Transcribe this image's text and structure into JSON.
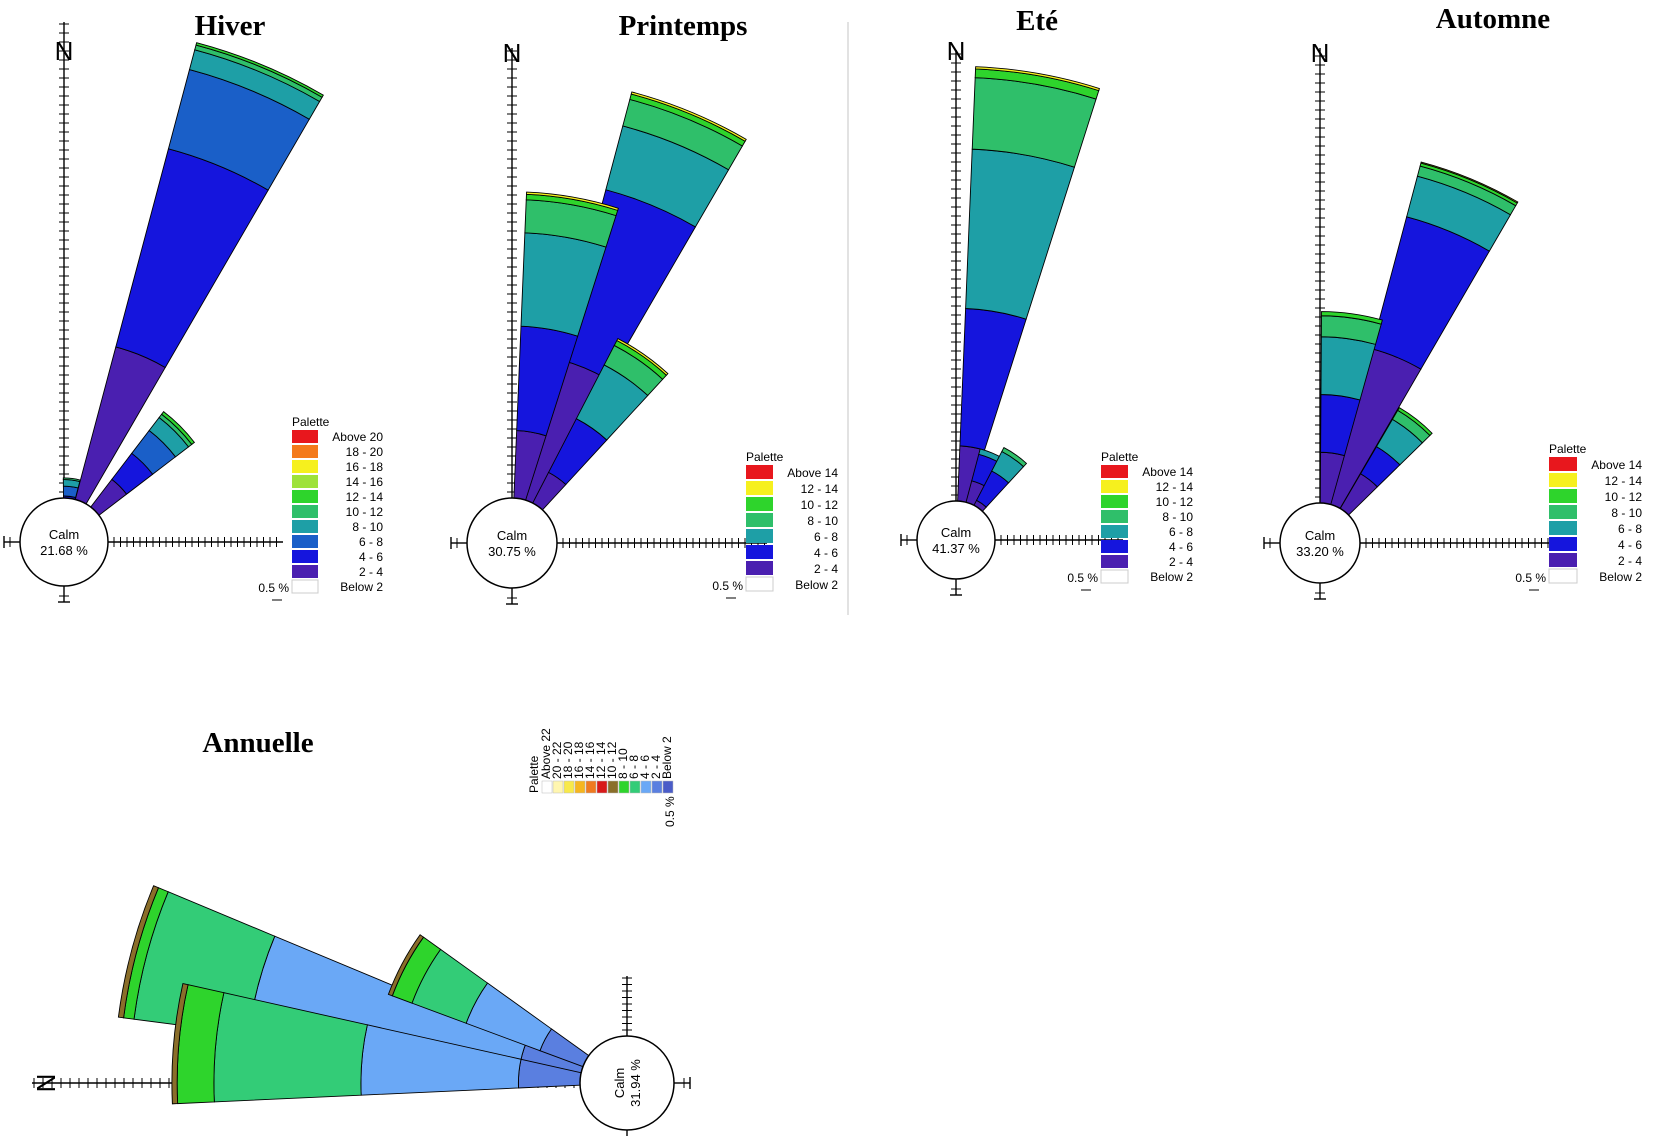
{
  "figure": {
    "calm_label": "Calm",
    "north_label": "N",
    "legend_title": "Palette",
    "scale_label": "0.5 %"
  },
  "chart_data": [
    {
      "type": "wind-rose",
      "title": "Hiver",
      "calm": "21.68 %",
      "legend": [
        "Above 20",
        "18 - 20",
        "16 - 18",
        "14 - 16",
        "12 - 14",
        "10 - 12",
        "8 - 10",
        "6 -  8",
        "4 -  6",
        "2 -  4",
        "Below  2"
      ],
      "legend_colors": [
        "#e8171d",
        "#f47a1c",
        "#f6f01e",
        "#9ee23a",
        "#2ed42c",
        "#2fbf6a",
        "#1e9fa6",
        "#1a5fc8",
        "#1515dd",
        "#4a1fb0",
        "#ffffff"
      ],
      "petals": [
        {
          "direction": 22.5,
          "bins": [
            {
              "range": "2 - 4",
              "value": 2.3
            },
            {
              "range": "4 - 6",
              "value": 2.5
            },
            {
              "range": "6 - 8",
              "value": 1.0
            },
            {
              "range": "8 - 10",
              "value": 0.25
            },
            {
              "range": "10 - 12",
              "value": 0.06
            },
            {
              "range": "12 - 14",
              "value": 0.03
            }
          ]
        },
        {
          "direction": 45,
          "bins": [
            {
              "range": "2 - 4",
              "value": 0.8
            },
            {
              "range": "4 - 6",
              "value": 0.4
            },
            {
              "range": "6 - 8",
              "value": 0.35
            },
            {
              "range": "8 - 10",
              "value": 0.2
            },
            {
              "range": "10 - 12",
              "value": 0.05
            },
            {
              "range": "12 - 14",
              "value": 0.04
            }
          ]
        },
        {
          "direction": 7,
          "bins": [
            {
              "range": "2 - 4",
              "value": 0.25
            },
            {
              "range": "4 - 6",
              "value": 0.15
            },
            {
              "range": "6 - 8",
              "value": 0.12
            },
            {
              "range": "8 - 10",
              "value": 0.08
            },
            {
              "range": "10 - 12",
              "value": 0.02
            }
          ]
        }
      ]
    },
    {
      "type": "wind-rose",
      "title": "Printemps",
      "calm": "30.75 %",
      "legend": [
        "Above 14",
        "12 - 14",
        "10 - 12",
        "8 - 10",
        "6 -  8",
        "4 -  6",
        "2 -  4",
        "Below  2"
      ],
      "legend_colors": [
        "#e8171d",
        "#f6f01e",
        "#2ed42c",
        "#2fbf6a",
        "#1e9fa6",
        "#1515dd",
        "#4a1fb0",
        "#ffffff"
      ],
      "petals": [
        {
          "direction": 22.5,
          "bins": [
            {
              "range": "2 - 4",
              "value": 1.6
            },
            {
              "range": "4 - 6",
              "value": 1.6
            },
            {
              "range": "6 - 8",
              "value": 0.6
            },
            {
              "range": "8 - 10",
              "value": 0.25
            },
            {
              "range": "10 - 12",
              "value": 0.05
            },
            {
              "range": "12 - 14",
              "value": 0.02
            }
          ]
        },
        {
          "direction": 10,
          "bins": [
            {
              "range": "2 - 4",
              "value": 0.9
            },
            {
              "range": "4 - 6",
              "value": 0.95
            },
            {
              "range": "6 - 8",
              "value": 0.85
            },
            {
              "range": "8 - 10",
              "value": 0.3
            },
            {
              "range": "10 - 12",
              "value": 0.05
            },
            {
              "range": "12 - 14",
              "value": 0.02
            }
          ]
        },
        {
          "direction": 35,
          "bins": [
            {
              "range": "2 - 4",
              "value": 0.6
            },
            {
              "range": "4 - 6",
              "value": 0.55
            },
            {
              "range": "6 - 8",
              "value": 0.55
            },
            {
              "range": "8 - 10",
              "value": 0.2
            },
            {
              "range": "10 - 12",
              "value": 0.05
            },
            {
              "range": "12 - 14",
              "value": 0.02
            }
          ]
        },
        {
          "direction": 0,
          "bins": [
            {
              "range": "2 - 4",
              "value": 0.15
            },
            {
              "range": "4 - 6",
              "value": 0.1
            }
          ]
        }
      ]
    },
    {
      "type": "wind-rose",
      "title": "Eté",
      "calm": "41.37 %",
      "legend": [
        "Above 14",
        "12 - 14",
        "10 - 12",
        "8 - 10",
        "6 -  8",
        "4 -  6",
        "2 -  4",
        "Below  2"
      ],
      "legend_colors": [
        "#e8171d",
        "#f6f01e",
        "#2ed42c",
        "#2fbf6a",
        "#1e9fa6",
        "#1515dd",
        "#4a1fb0",
        "#ffffff"
      ],
      "petals": [
        {
          "direction": 10,
          "bins": [
            {
              "range": "2 - 4",
              "value": 0.75
            },
            {
              "range": "4 - 6",
              "value": 1.25
            },
            {
              "range": "6 - 8",
              "value": 1.45
            },
            {
              "range": "8 - 10",
              "value": 0.65
            },
            {
              "range": "10 - 12",
              "value": 0.08
            },
            {
              "range": "12 - 14",
              "value": 0.02
            }
          ]
        },
        {
          "direction": 22.5,
          "bins": [
            {
              "range": "2 - 4",
              "value": 0.45
            },
            {
              "range": "4 - 6",
              "value": 0.25
            },
            {
              "range": "6 - 8",
              "value": 0.05
            }
          ]
        },
        {
          "direction": 35,
          "bins": [
            {
              "range": "2 - 4",
              "value": 0.3
            },
            {
              "range": "4 - 6",
              "value": 0.3
            },
            {
              "range": "6 - 8",
              "value": 0.2
            },
            {
              "range": "8 - 10",
              "value": 0.04
            }
          ]
        },
        {
          "direction": 0,
          "bins": [
            {
              "range": "2 - 4",
              "value": 0.15
            },
            {
              "range": "4 - 6",
              "value": 0.1
            }
          ]
        }
      ]
    },
    {
      "type": "wind-rose",
      "title": "Automne",
      "calm": "33.20 %",
      "legend": [
        "Above 14",
        "12 - 14",
        "10 - 12",
        "8 - 10",
        "6 -  8",
        "4 -  6",
        "2 -  4",
        "Below  2"
      ],
      "legend_colors": [
        "#e8171d",
        "#f6f01e",
        "#2ed42c",
        "#2fbf6a",
        "#1e9fa6",
        "#1515dd",
        "#4a1fb0",
        "#ffffff"
      ],
      "petals": [
        {
          "direction": 22.5,
          "bins": [
            {
              "range": "2 - 4",
              "value": 1.8
            },
            {
              "range": "4 - 6",
              "value": 1.3
            },
            {
              "range": "6 - 8",
              "value": 0.4
            },
            {
              "range": "8 - 10",
              "value": 0.1
            },
            {
              "range": "10 - 12",
              "value": 0.03
            },
            {
              "range": "12 - 14",
              "value": 0.01
            }
          ]
        },
        {
          "direction": 8,
          "bins": [
            {
              "range": "2 - 4",
              "value": 0.75
            },
            {
              "range": "4 - 6",
              "value": 0.55
            },
            {
              "range": "6 - 8",
              "value": 0.55
            },
            {
              "range": "8 - 10",
              "value": 0.2
            },
            {
              "range": "10 - 12",
              "value": 0.04
            }
          ]
        },
        {
          "direction": 38,
          "bins": [
            {
              "range": "2 - 4",
              "value": 0.65
            },
            {
              "range": "4 - 6",
              "value": 0.3
            },
            {
              "range": "6 - 8",
              "value": 0.3
            },
            {
              "range": "8 - 10",
              "value": 0.1
            },
            {
              "range": "10 - 12",
              "value": 0.03
            }
          ]
        },
        {
          "direction": 0,
          "bins": [
            {
              "range": "2 - 4",
              "value": 0.15
            },
            {
              "range": "4 - 6",
              "value": 0.1
            }
          ]
        }
      ]
    },
    {
      "type": "wind-rose",
      "title": "Annuelle",
      "calm": "31.94 %",
      "orientation": "rotated 90 degrees (N pointing left)",
      "legend": [
        "Above 22",
        "20 - 22",
        "18 - 20",
        "16 - 18",
        "14 - 16",
        "12 - 14",
        "10 - 12",
        "8 - 10",
        "6 -  8",
        "4 -  6",
        "2 -  4",
        "Below  2"
      ],
      "legend_colors": [
        "#ffffff",
        "#fff6b0",
        "#f8e94a",
        "#f6b61f",
        "#ef7a20",
        "#d81a1a",
        "#8a6e2a",
        "#2ed42c",
        "#33cc77",
        "#6aa8f6",
        "#5a7fe0",
        "#4a5cc8"
      ],
      "petals": [
        {
          "direction": 15,
          "bins": [
            {
              "range": "2 - 4",
              "value": 0.9
            },
            {
              "range": "4 - 6",
              "value": 2.6
            },
            {
              "range": "6 - 8",
              "value": 1.1
            },
            {
              "range": "8 - 10",
              "value": 0.1
            },
            {
              "range": "10 - 12",
              "value": 0.05
            }
          ]
        },
        {
          "direction": 5,
          "bins": [
            {
              "range": "2 - 4",
              "value": 0.9
            },
            {
              "range": "4 - 6",
              "value": 1.5
            },
            {
              "range": "6 - 8",
              "value": 1.4
            },
            {
              "range": "8 - 10",
              "value": 0.35
            },
            {
              "range": "10 - 12",
              "value": 0.05
            }
          ]
        },
        {
          "direction": 28,
          "bins": [
            {
              "range": "2 - 4",
              "value": 0.75
            },
            {
              "range": "4 - 6",
              "value": 0.75
            },
            {
              "range": "6 - 8",
              "value": 0.55
            },
            {
              "range": "8 - 10",
              "value": 0.2
            },
            {
              "range": "10 - 12",
              "value": 0.04
            }
          ]
        }
      ]
    }
  ]
}
